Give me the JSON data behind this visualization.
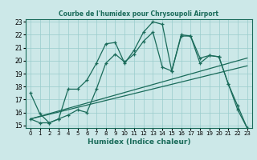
{
  "title": "Courbe de l'humidex pour Chrysoupoli Airport",
  "xlabel": "Humidex (Indice chaleur)",
  "bg_color": "#cce8e8",
  "line_color": "#1a6b5a",
  "grid_color": "#99cccc",
  "xlim": [
    -0.5,
    23.5
  ],
  "ylim": [
    14.8,
    23.2
  ],
  "xticks": [
    0,
    1,
    2,
    3,
    4,
    5,
    6,
    7,
    8,
    9,
    10,
    11,
    12,
    13,
    14,
    15,
    16,
    17,
    18,
    19,
    20,
    21,
    22,
    23
  ],
  "yticks": [
    15,
    16,
    17,
    18,
    19,
    20,
    21,
    22,
    23
  ],
  "series1_x": [
    0,
    1,
    2,
    3,
    4,
    5,
    6,
    7,
    8,
    9,
    10,
    11,
    12,
    13,
    14,
    15,
    16,
    17,
    18,
    19,
    20,
    21,
    22,
    23
  ],
  "series1_y": [
    17.5,
    15.9,
    15.2,
    15.5,
    17.8,
    17.8,
    18.5,
    19.8,
    21.3,
    21.4,
    19.8,
    20.8,
    22.2,
    23.0,
    22.8,
    19.2,
    21.9,
    21.9,
    19.8,
    20.4,
    20.3,
    18.2,
    16.5,
    14.8
  ],
  "series2_x": [
    0,
    1,
    2,
    3,
    4,
    5,
    6,
    7,
    8,
    9,
    10,
    11,
    12,
    13,
    14,
    15,
    16,
    17,
    18,
    19,
    20,
    21,
    22,
    23
  ],
  "series2_y": [
    15.5,
    15.2,
    15.2,
    15.5,
    15.8,
    16.2,
    16.0,
    17.8,
    19.8,
    20.5,
    19.9,
    20.5,
    21.5,
    22.2,
    19.5,
    19.2,
    22.0,
    21.9,
    20.2,
    20.4,
    20.3,
    18.2,
    16.2,
    14.8
  ],
  "series3_x": [
    0,
    23
  ],
  "series3_y": [
    15.5,
    19.6
  ],
  "series4_x": [
    0,
    23
  ],
  "series4_y": [
    15.5,
    20.2
  ]
}
